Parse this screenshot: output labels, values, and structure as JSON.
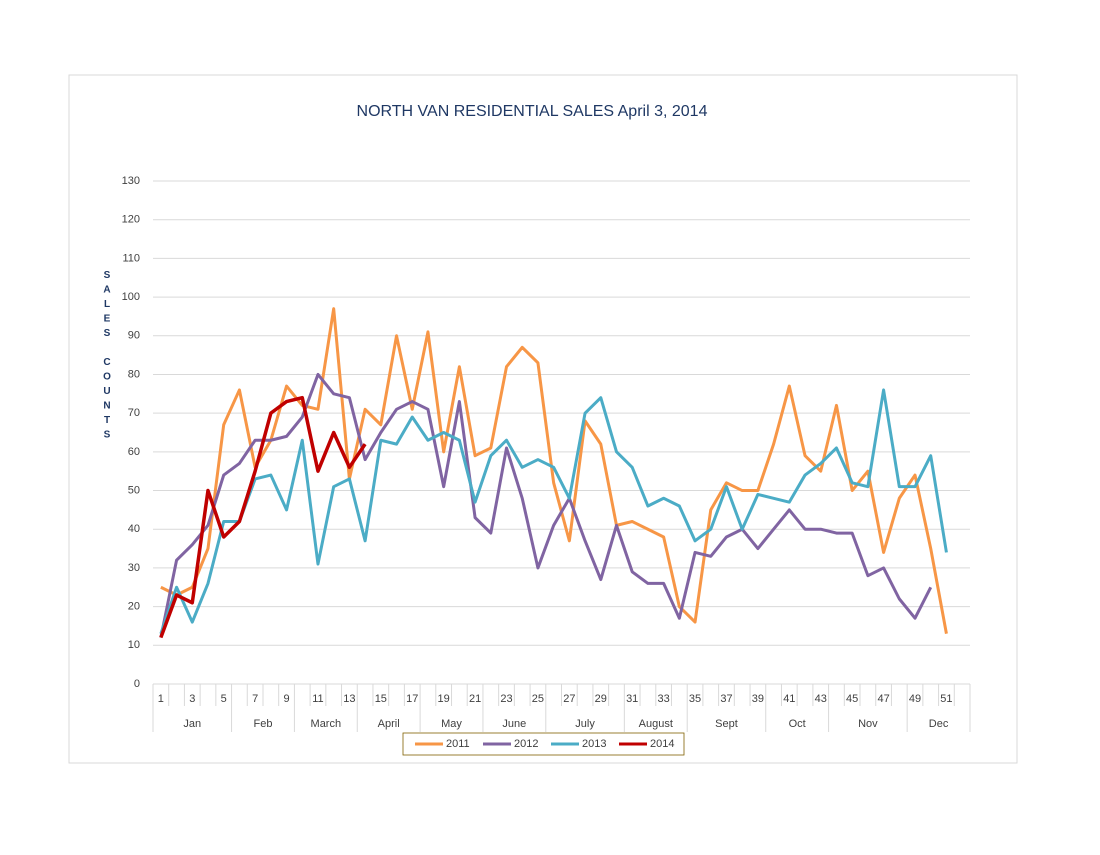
{
  "chart_data": {
    "type": "line",
    "title": "NORTH VAN RESIDENTIAL SALES  April 3, 2014",
    "y_label": "SALES COUNTS",
    "categories": [
      1,
      null,
      3,
      null,
      5,
      null,
      7,
      null,
      9,
      null,
      11,
      null,
      13,
      null,
      15,
      null,
      17,
      null,
      19,
      null,
      21,
      null,
      23,
      null,
      25,
      null,
      27,
      null,
      29,
      null,
      31,
      null,
      33,
      null,
      35,
      null,
      37,
      null,
      39,
      null,
      41,
      null,
      43,
      null,
      45,
      null,
      47,
      null,
      49,
      null,
      51
    ],
    "months": [
      "Jan",
      "Feb",
      "March",
      "April",
      "May",
      "June",
      "July",
      "August",
      "Sept",
      "Oct",
      "Nov",
      "Dec"
    ],
    "ylim": [
      0,
      130
    ],
    "yticks": [
      0,
      10,
      20,
      30,
      40,
      50,
      60,
      70,
      80,
      90,
      100,
      110,
      120,
      130
    ],
    "grid": true,
    "legend": "bottom",
    "series": [
      {
        "name": "2011",
        "color": "#f79646",
        "values": [
          25,
          23,
          25,
          35,
          67,
          76,
          56,
          63,
          77,
          72,
          71,
          97,
          53,
          71,
          67,
          90,
          71,
          91,
          60,
          82,
          59,
          61,
          82,
          87,
          83,
          52,
          37,
          68,
          62,
          41,
          42,
          40,
          38,
          20,
          16,
          45,
          52,
          50,
          50,
          62,
          77,
          59,
          55,
          72,
          50,
          55,
          34,
          48,
          54,
          35,
          13
        ]
      },
      {
        "name": "2012",
        "color": "#8064a2",
        "values": [
          12,
          32,
          36,
          41,
          54,
          57,
          63,
          63,
          64,
          69,
          80,
          75,
          74,
          58,
          65,
          71,
          73,
          71,
          51,
          73,
          43,
          39,
          61,
          48,
          30,
          41,
          48,
          37,
          27,
          41,
          29,
          26,
          26,
          17,
          34,
          33,
          38,
          40,
          35,
          40,
          45,
          40,
          40,
          39,
          39,
          28,
          30,
          22,
          17,
          25,
          null
        ]
      },
      {
        "name": "2013",
        "color": "#4bacc6",
        "values": [
          13,
          25,
          16,
          26,
          42,
          42,
          53,
          54,
          45,
          63,
          31,
          51,
          53,
          37,
          63,
          62,
          69,
          63,
          65,
          63,
          47,
          59,
          63,
          56,
          58,
          56,
          48,
          70,
          74,
          60,
          56,
          46,
          48,
          46,
          37,
          40,
          51,
          40,
          49,
          48,
          47,
          54,
          57,
          61,
          52,
          51,
          76,
          51,
          51,
          59,
          34
        ]
      },
      {
        "name": "2014",
        "color": "#c00000",
        "values": [
          12,
          23,
          21,
          50,
          38,
          42,
          55,
          70,
          73,
          74,
          55,
          65,
          56,
          62,
          null,
          null,
          null,
          null,
          null,
          null,
          null,
          null,
          null,
          null,
          null,
          null,
          null,
          null,
          null,
          null,
          null,
          null,
          null,
          null,
          null,
          null,
          null,
          null,
          null,
          null,
          null,
          null,
          null,
          null,
          null,
          null,
          null,
          null,
          null,
          null,
          null
        ]
      }
    ]
  }
}
